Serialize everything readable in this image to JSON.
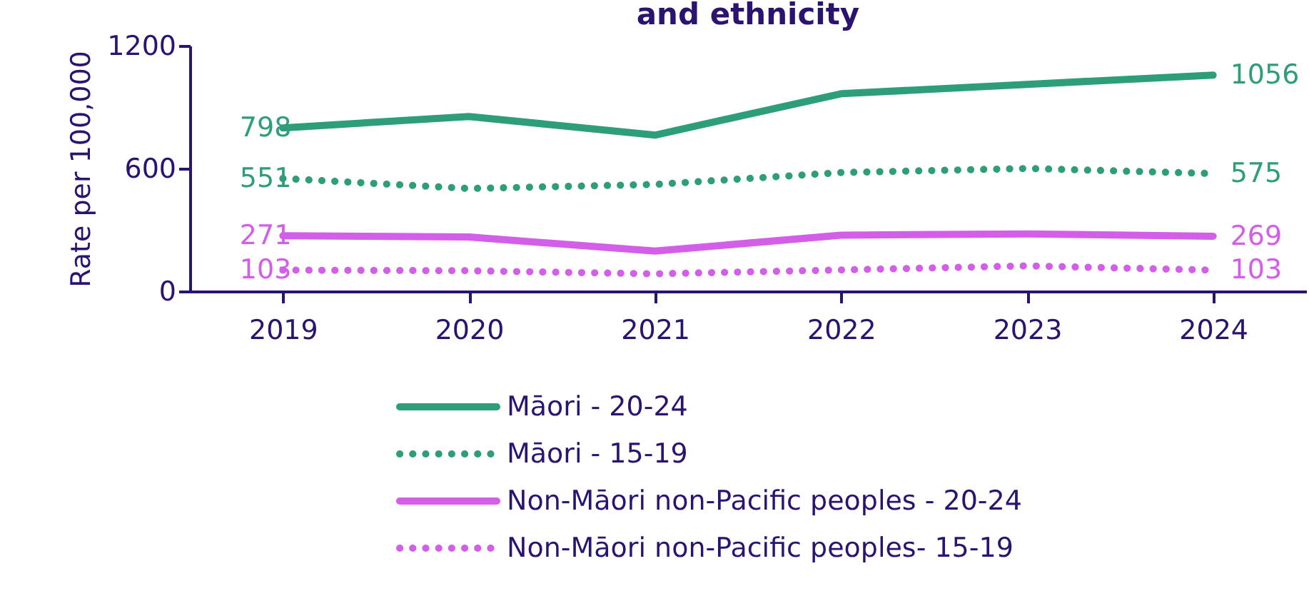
{
  "chart_data": {
    "type": "line",
    "title": "and ethnicity",
    "ylabel": "Rate per 100,000",
    "categories": [
      "2019",
      "2020",
      "2021",
      "2022",
      "2023",
      "2024"
    ],
    "ylim": [
      0,
      1200
    ],
    "yticks": [
      {
        "value": 0,
        "label": "0"
      },
      {
        "value": 600,
        "label": "600"
      },
      {
        "value": 1200,
        "label": "1200"
      }
    ],
    "grid": false,
    "legend": "bottom",
    "marker": "none",
    "series": [
      {
        "name": "Māori - 20-24",
        "color": "#2e9e7a",
        "line_style": "solid",
        "values": [
          798,
          854,
          763,
          965,
          1011,
          1056
        ],
        "value_labels": [
          "798",
          null,
          null,
          null,
          null,
          "1056"
        ]
      },
      {
        "name": "Māori - 15-19",
        "color": "#2e9e7a",
        "line_style": "dotted",
        "values": [
          551,
          502,
          522,
          580,
          600,
          575
        ],
        "value_labels": [
          "551",
          null,
          null,
          null,
          null,
          "575"
        ]
      },
      {
        "name": "Non-Māori non-Pacific peoples - 20-24",
        "color": "#d35ee8",
        "line_style": "solid",
        "values": [
          271,
          265,
          196,
          274,
          280,
          269
        ],
        "value_labels": [
          "271",
          null,
          null,
          null,
          null,
          "269"
        ]
      },
      {
        "name": "Non-Māori non-Pacific peoples- 15-19",
        "color": "#d35ee8",
        "line_style": "dotted",
        "values": [
          103,
          100,
          85,
          104,
          124,
          103
        ],
        "value_labels": [
          "103",
          null,
          null,
          null,
          null,
          "103"
        ]
      }
    ]
  }
}
